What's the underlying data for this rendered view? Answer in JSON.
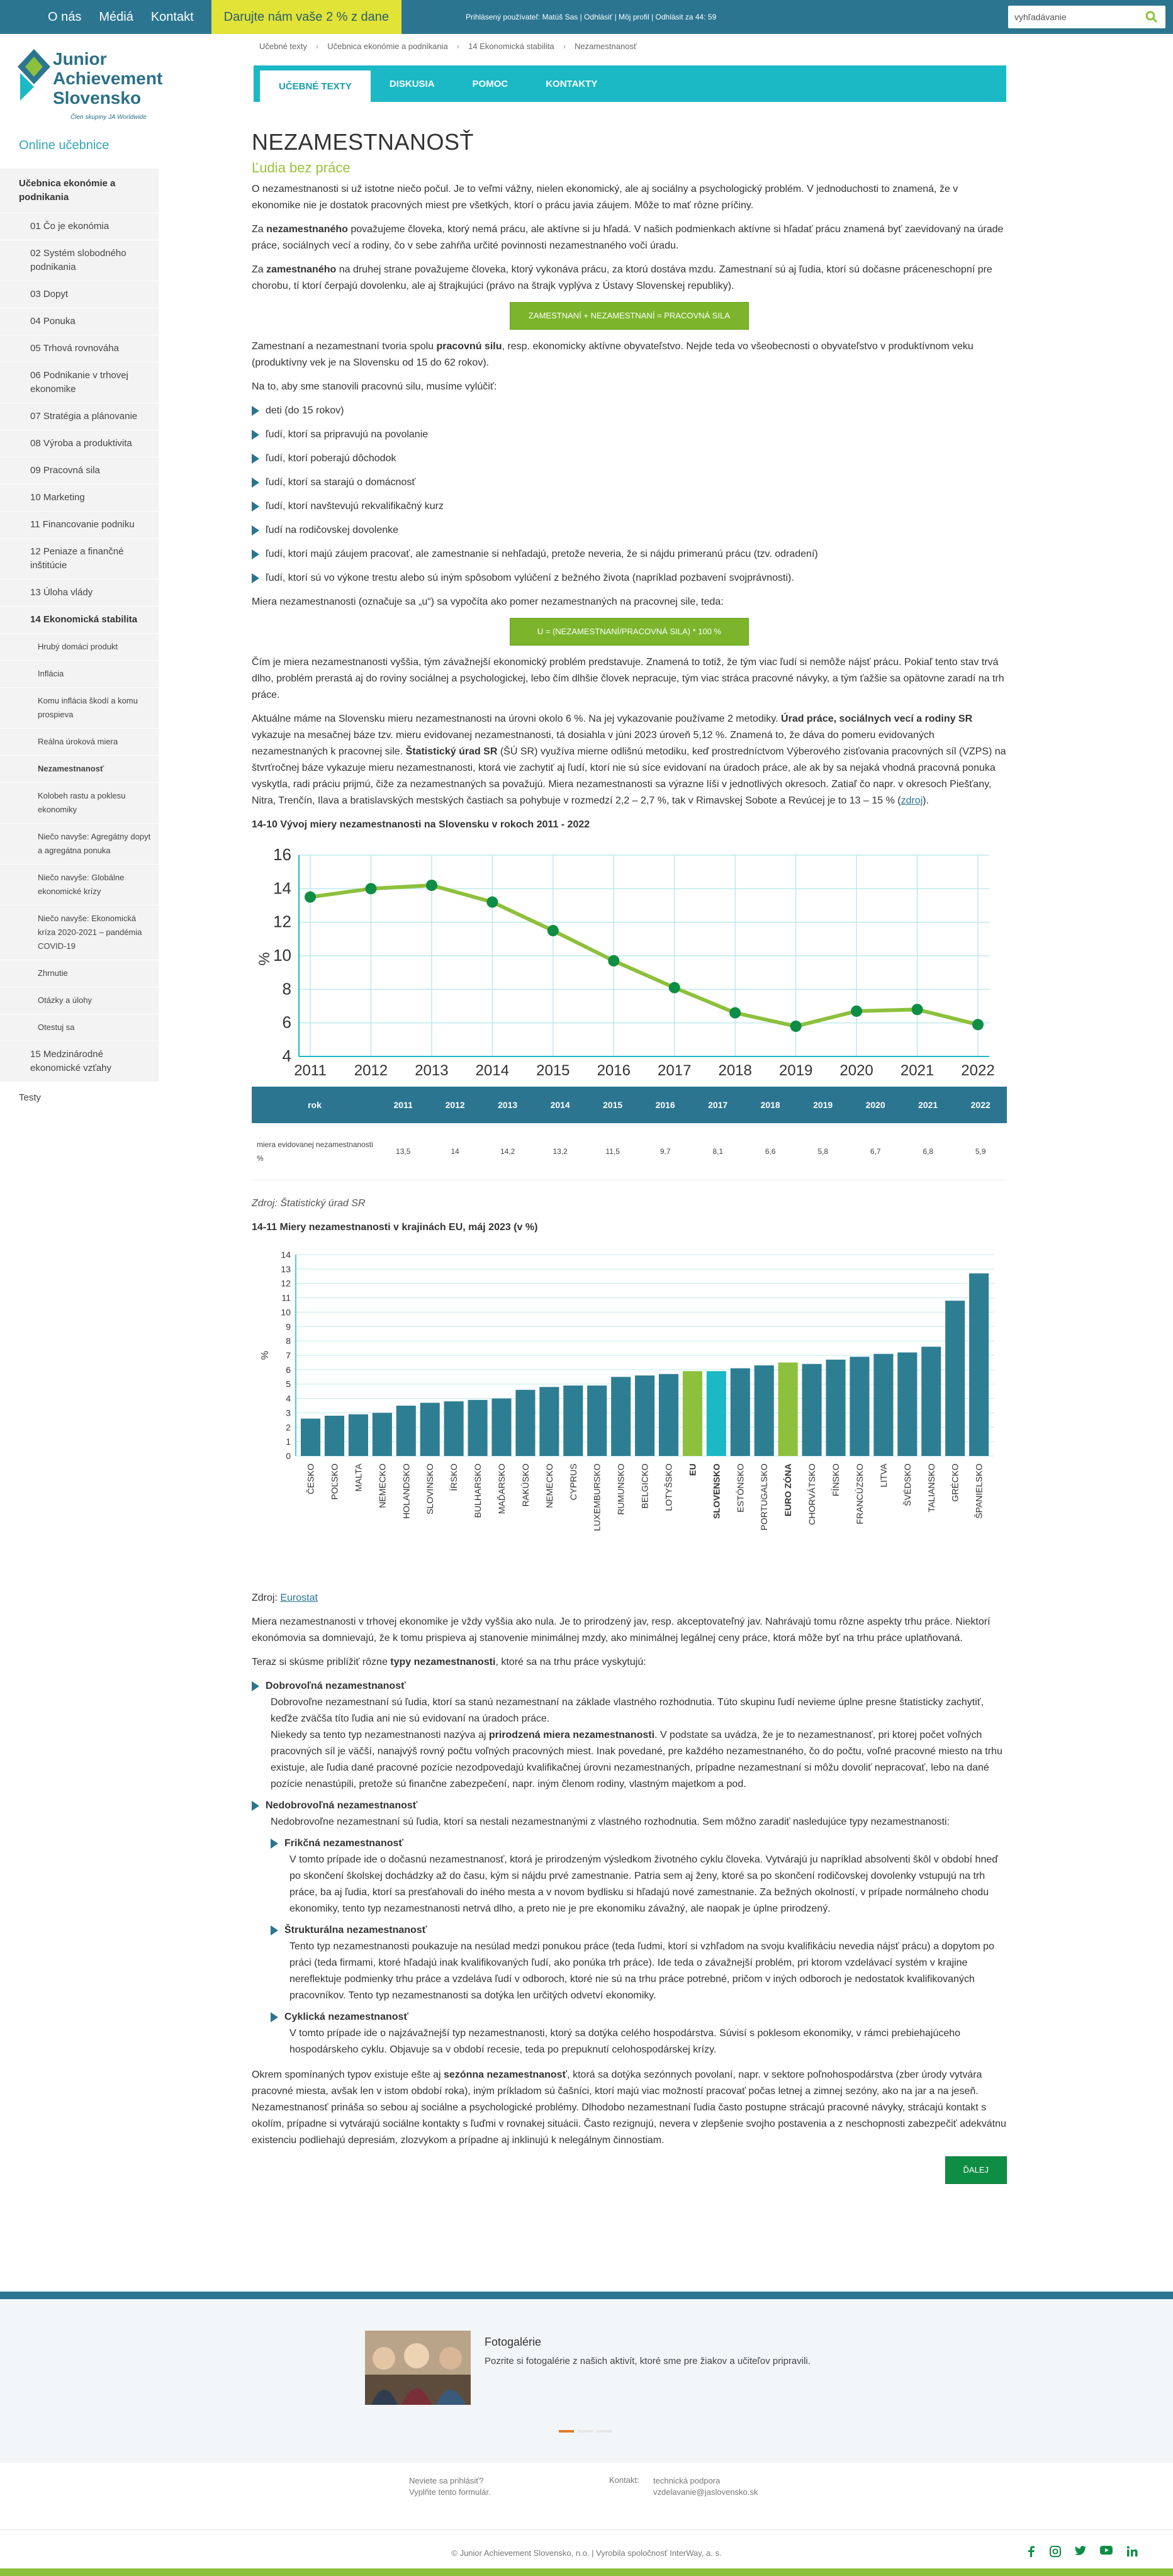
{
  "topbar": {
    "nav": [
      "O nás",
      "Médiá",
      "Kontakt"
    ],
    "donate": "Darujte nám vaše 2 % z dane",
    "user": "Prihlásený používateľ: Matúš Sas  |  Odhlásiť  |  Môj profil  |  Odhlásit za 44: 59",
    "search_placeholder": "vyhľadávanie"
  },
  "logo": {
    "line1": "Junior",
    "line2": "Achievement",
    "line3": "Slovensko",
    "tag": "Člen skupiny JA Worldwide"
  },
  "sidebar": {
    "title": "Online učebnice",
    "items": [
      {
        "label": "Učebnica ekonómie a podnikania",
        "lvl": "hdr"
      },
      {
        "label": "01 Čo je ekonómia",
        "lvl": "l1"
      },
      {
        "label": "02 Systém slobodného podnikania",
        "lvl": "l1"
      },
      {
        "label": "03 Dopyt",
        "lvl": "l1"
      },
      {
        "label": "04 Ponuka",
        "lvl": "l1"
      },
      {
        "label": "05 Trhová rovnováha",
        "lvl": "l1"
      },
      {
        "label": "06 Podnikanie v trhovej ekonomike",
        "lvl": "l1"
      },
      {
        "label": "07 Stratégia a plánovanie",
        "lvl": "l1"
      },
      {
        "label": "08 Výroba a produktivita",
        "lvl": "l1"
      },
      {
        "label": "09 Pracovná sila",
        "lvl": "l1"
      },
      {
        "label": "10 Marketing",
        "lvl": "l1"
      },
      {
        "label": "11 Financovanie podniku",
        "lvl": "l1"
      },
      {
        "label": "12 Peniaze a finančné inštitúcie",
        "lvl": "l1"
      },
      {
        "label": "13 Úloha vlády",
        "lvl": "l1"
      },
      {
        "label": "14 Ekonomická stabilita",
        "lvl": "l1b"
      },
      {
        "label": "Hrubý domáci produkt",
        "lvl": "l2"
      },
      {
        "label": "Inflácia",
        "lvl": "l2"
      },
      {
        "label": "Komu inflácia škodí a komu prospieva",
        "lvl": "l2"
      },
      {
        "label": "Reálna úroková miera",
        "lvl": "l2"
      },
      {
        "label": "Nezamestnanosť",
        "lvl": "l2c"
      },
      {
        "label": "Kolobeh rastu a poklesu ekonomiky",
        "lvl": "l2"
      },
      {
        "label": "Niečo navyše: Agregátny dopyt a agregátna ponuka",
        "lvl": "l2"
      },
      {
        "label": "Niečo navyše: Globálne ekonomické krízy",
        "lvl": "l2"
      },
      {
        "label": "Niečo navyše: Ekonomická kríza 2020-2021 – pandémia COVID-19",
        "lvl": "l2"
      },
      {
        "label": "Zhrnutie",
        "lvl": "l2"
      },
      {
        "label": "Otázky a úlohy",
        "lvl": "l2"
      },
      {
        "label": "Otestuj sa",
        "lvl": "l2"
      },
      {
        "label": "15 Medzinárodné ekonomické vzťahy",
        "lvl": "l1"
      },
      {
        "label": "Testy",
        "lvl": "l0"
      }
    ]
  },
  "breadcrumbs": [
    "Učebné texty",
    "Učebnica ekonómie a podnikania",
    "14 Ekonomická stabilita",
    "Nezamestnanosť"
  ],
  "tabs": [
    "UČEBNÉ TEXTY",
    "DISKUSIA",
    "POMOC",
    "KONTAKTY"
  ],
  "content": {
    "title": "NEZAMESTNANOSŤ",
    "subtitle": "Ľudia bez práce",
    "p1": "O nezamestnanosti si už istotne niečo počul. Je to veľmi vážny, nielen ekonomický, ale aj sociálny a psychologický problém. V jednoduchosti to znamená, že v ekonomike nie je dostatok pracovných miest pre všetkých, ktorí o prácu javia záujem. Môže to mať rôzne príčiny.",
    "p2a": "Za ",
    "p2b": "nezamestnaného",
    "p2c": " považujeme človeka, ktorý nemá prácu, ale aktívne si ju hľadá. V našich podmienkach aktívne si hľadať prácu znamená byť zaevidovaný na úrade práce, sociálnych vecí a rodiny, čo v sebe zahŕňa určité povinnosti nezamestnaného voči úradu.",
    "p3a": "Za ",
    "p3b": "zamestnaného",
    "p3c": " na druhej strane považujeme človeka, ktorý vykonáva prácu, za ktorú dostáva mzdu. Zamestnaní sú aj ľudia, ktorí sú dočasne práceneschopní pre chorobu, tí ktorí čerpajú dovolenku, ale aj štrajkujúci (právo na štrajk vyplýva z Ústavy Slovenskej republiky).",
    "formula1": "ZAMESTNANÍ + NEZAMESTNANÍ = PRACOVNÁ SILA",
    "p4a": "Zamestnaní a nezamestnaní tvoria spolu ",
    "p4b": "pracovnú silu",
    "p4c": ", resp. ekonomicky aktívne obyvateľstvo. Nejde teda vo všeobecnosti o obyvateľstvo v produktívnom veku (produktívny vek je na Slovensku od 15 do 62 rokov).",
    "p5": "Na to, aby sme stanovili pracovnú silu, musíme vylúčiť:",
    "exclusions": [
      "deti (do 15 rokov)",
      "ľudí, ktorí sa pripravujú na povolanie",
      "ľudí, ktorí poberajú dôchodok",
      "ľudí, ktorí sa starajú o domácnosť",
      "ľudí, ktorí navštevujú rekvalifikačný kurz",
      "ľudí na rodičovskej dovolenke",
      "ľudí, ktorí majú záujem pracovať, ale zamestnanie si nehľadajú, pretože neveria, že si nájdu primeranú prácu (tzv. odradení)",
      "ľudí, ktorí sú vo výkone trestu alebo sú iným spôsobom vylúčení z bežného života (napríklad pozbavení svojprávnosti)."
    ],
    "p6": "Miera nezamestnanosti (označuje sa „u“) sa vypočíta ako pomer nezamestnaných na pracovnej sile, teda:",
    "formula2": "U = (NEZAMESTNANÍ/PRACOVNÁ SILA) * 100 %",
    "p7": "Čím je miera nezamestnanosti vyššia, tým závažnejší ekonomický problém predstavuje. Znamená to totiž, že tým viac ľudí si nemôže nájsť prácu. Pokiaľ tento stav trvá dlho, problém prerastá aj do roviny sociálnej a psychologickej, lebo čím dlhšie človek nepracuje, tým viac stráca pracovné návyky, a tým ťažšie sa opätovne zaradí na trh práce.",
    "p8a": "Aktuálne máme na Slovensku mieru nezamestnanosti na úrovni okolo 6 %. Na jej vykazovanie používame 2 metodiky. ",
    "p8b": "Úrad práce, sociálnych vecí a rodiny SR",
    "p8c": " vykazuje na mesačnej báze tzv.  mieru evidovanej nezamestnanosti, tá dosiahla v júni 2023 úroveň 5,12 %. Znamená to, že dáva do pomeru evidovaných nezamestnaných k pracovnej sile. ",
    "p8d": "Štatistický úrad SR",
    "p8e": " (ŠÚ SR) využíva mierne odlišnú metodiku, keď prostredníctvom Výberového zisťovania pracovných síl (VZPS) na štvrťročnej báze vykazuje mieru nezamestnanosti, ktorá vie zachytiť aj ľudí, ktorí nie sú síce evidovaní na úradoch práce, ale ak by sa nejaká vhodná pracovná ponuka vyskytla, radi práciu prijmú, čiže za nezamestnaných sa považujú. Miera nezamestnanosti sa výrazne líši v jednotlivých okresoch. Zatiaľ čo napr. v okresoch Piešťany, Nitra, Trenčín, Ilava a bratislavských mestských častiach sa pohybuje v rozmedzí 2,2 – 2,7 %, tak v Rimavskej Sobote a Revúcej je to 13 – 15 % (",
    "p8link": "zdroj",
    "p8f": ").",
    "chart1_title": "14-10 Vývoj miery nezamestnanosti na Slovensku v rokoch 2011 - 2022",
    "table_head": "rok",
    "table_row_label": "miera evidovanej nezamestnanosti %",
    "src1": "Zdroj: Štatistický úrad SR",
    "chart2_title": "14-11 Miery nezamestnanosti v krajinách EU, máj 2023 (v %)",
    "src2a": "Zdroj: ",
    "src2link": "Eurostat",
    "p9": "Miera nezamestnanosti v trhovej ekonomike je vždy vyššia ako nula. Je to prirodzený jav, resp. akceptovateľný jav. Nahrávajú tomu rôzne aspekty trhu práce. Niektorí ekonómovia sa domnievajú, že k tomu prispieva aj stanovenie minimálnej mzdy, ako minimálnej legálnej ceny práce, ktorá môže byť na trhu práce uplatňovaná.",
    "p10a": "Teraz si skúsme priblížiť rôzne ",
    "p10b": "typy nezamestnanosti",
    "p10c": ", ktoré sa na trhu práce vyskytujú:",
    "t1_head": "Dobrovoľná nezamestnanosť",
    "t1_p1": "Dobrovoľne nezamestnaní sú ľudia, ktorí sa stanú nezamestnaní na základe vlastného rozhodnutia. Túto skupinu ľudí nevieme úplne presne štatisticky zachytiť, keďže zväčša títo ľudia ani nie sú evidovaní na úradoch práce.",
    "t1_p2a": "Niekedy sa tento typ nezamestnanosti nazýva aj ",
    "t1_p2b": "prirodzená miera nezamestnanosti",
    "t1_p2c": ". V podstate sa uvádza, že je to nezamestnanosť, pri ktorej počet voľných pracovných síl je väčší, nanajvýš rovný počtu voľných pracovných miest. Inak povedané, pre každého nezamestnaného, čo do počtu, voľné pracovné miesto na trhu existuje, ale ľudia dané pracovné pozície nezodpovedajú kvalifikačnej úrovni nezamestnaných, prípadne nezamestnaní si môžu dovoliť nepracovať, lebo na dané pozície nenastúpili, pretože sú finančne zabezpečení, napr. iným členom rodiny, vlastným majetkom a pod.",
    "t2_head": "Nedobrovoľná nezamestnanosť",
    "t2_p": "Nedobrovoľne nezamestnaní sú ľudia, ktorí sa nestali nezamestnanými z vlastného rozhodnutia. Sem môžno zaradiť nasledujúce typy nezamestnanosti:",
    "s1_head": "Frikčná nezamestnanosť",
    "s1_p": "V tomto prípade ide o dočasnú nezamestnanosť, ktorá je prirodzeným výsledkom životného cyklu človeka. Vytvárajú ju napríklad absolventi škôl v období hneď po skončení školskej dochádzky až do času, kým si nájdu prvé zamestnanie. Patria sem aj ženy, ktoré sa po skončení rodičovskej dovolenky vstupujú na trh práce, ba aj ľudia, ktorí sa presťahovali do iného mesta a v novom bydlisku si hľadajú nové zamestnanie. Za bežných okolností, v prípade normálneho chodu ekonomiky, tento typ nezamestnanosti netrvá dlho, a preto nie je pre ekonomiku závažný, ale naopak je úplne prirodzený.",
    "s2_head": "Štrukturálna nezamestnanosť",
    "s2_p": "Tento typ nezamestnanosti poukazuje na nesúlad medzi ponukou práce (teda ľudmi, ktorí si vzhľadom na svoju kvalifikáciu nevedia nájsť prácu) a dopytom po práci (teda firmami, ktoré hľadajú inak kvalifikovaných ľudí, ako ponúka trh práce). Ide teda o závažnejší problém, pri ktorom vzdelávací systém v krajine nereflektuje podmienky trhu práce a vzdeláva ľudí v odboroch, ktoré nie sú na trhu práce potrebné, pričom v iných odboroch je nedostatok kvalifikovaných pracovníkov. Tento typ nezamestnanosti sa dotýka len určitých odvetví ekonomiky.",
    "s3_head": "Cyklická nezamestnanosť",
    "s3_p": "V tomto prípade ide o najzávažnejší typ nezamestnanosti, ktorý sa dotýka celého hospodárstva. Súvisí s poklesom ekonomiky, v rámci prebiehajúceho hospodárskeho cyklu. Objavuje sa v období recesie, teda po prepuknutí celohospodárskej krízy.",
    "p11a": "Okrem spomínaných typov existuje ešte aj ",
    "p11b": "sezónna nezamestnanosť",
    "p11c": ", ktorá sa dotýka sezónnych povolaní, napr. v sektore poľnohospodárstva (zber úrody vytvára pracovné miesta, avšak len v istom období roka), iným príkladom sú čašníci, ktorí majú viac možností pracovať počas letnej a zimnej sezóny, ako na jar a na jeseň.",
    "p12": "Nezamestnanosť prináša so sebou aj sociálne a psychologické problémy. Dlhodobo nezamestnaní ľudia často postupne strácajú pracovné návyky, stráca­jú kontakt s okolím, prípadne si vytvárajú sociálne kontakty s ľuďmi v rovnakej situácii. Často rezignujú, nevera v zlepšenie svojho postavenia a z neschopnosti zabezpečiť adekvátnu existenciu podliehajú depresiám, zlozvykom a prípadne aj inklinujú k nelegálnym činnostiam.",
    "next": "ĎALEJ"
  },
  "chart_data": [
    {
      "type": "line",
      "title": "14-10 Vývoj miery nezamestnanosti na Slovensku v rokoch 2011 - 2022",
      "x": [
        "2011",
        "2012",
        "2013",
        "2014",
        "2015",
        "2016",
        "2017",
        "2018",
        "2019",
        "2020",
        "2021",
        "2022"
      ],
      "values": [
        13.5,
        14,
        14.2,
        13.2,
        11.5,
        9.7,
        8.1,
        6.6,
        5.8,
        6.7,
        6.8,
        5.9
      ],
      "ylabel": "%",
      "ylim": [
        4,
        16
      ],
      "yticks": [
        4,
        6,
        8,
        10,
        12,
        14,
        16
      ],
      "grid": true,
      "line_color": "#8dc03c",
      "marker_color": "#0e8d44",
      "table_values": [
        "13,5",
        "14",
        "14,2",
        "13,2",
        "11,5",
        "9,7",
        "8,1",
        "6,6",
        "5,8",
        "6,7",
        "6,8",
        "5,9"
      ]
    },
    {
      "type": "bar",
      "title": "14-11 Miery nezamestnanosti v krajinách EU, máj 2023 (v %)",
      "categories": [
        "ČESKO",
        "POĽSKO",
        "MALTA",
        "NEMECKO",
        "HOLANDSKO",
        "SLOVINSKO",
        "ÍRSKO",
        "BULHARSKO",
        "MAĎARSKO",
        "RAKÚSKO",
        "NEMECKO",
        "CYPRUS",
        "LUXEMBURSKO",
        "RUMUNSKO",
        "BELGICKO",
        "LOTYŠSKO",
        "EU",
        "SLOVENSKO",
        "ESTÓNSKO",
        "PORTUGALSKO",
        "EURO ZÓNA",
        "CHORVÁTSKO",
        "FÍNSKO",
        "FRANCÚZSKO",
        "LITVA",
        "ŠVÉDSKO",
        "TALIANSKO",
        "GRÉCKO",
        "ŠPANIELSKO"
      ],
      "values": [
        2.6,
        2.8,
        2.9,
        3.0,
        3.5,
        3.7,
        3.8,
        3.9,
        4.0,
        4.6,
        4.8,
        4.9,
        4.9,
        5.5,
        5.6,
        5.7,
        5.9,
        5.9,
        6.1,
        6.3,
        6.5,
        6.4,
        6.7,
        6.9,
        7.1,
        7.2,
        7.6,
        10.8,
        12.7
      ],
      "bold_categories": [
        "EU",
        "SLOVENSKO",
        "EURO ZÓNA"
      ],
      "highlight": {
        "EU": "#8dc03c",
        "SLOVENSKO": "#1ab9c5",
        "EURO ZÓNA": "#8dc03c"
      },
      "bar_color": "#2e7e93",
      "ylabel": "%",
      "ylim": [
        0,
        14
      ],
      "yticks": [
        0,
        1,
        2,
        3,
        4,
        5,
        6,
        7,
        8,
        9,
        10,
        11,
        12,
        13,
        14
      ],
      "grid": true
    }
  ],
  "footer": {
    "gallery_title": "Fotogalérie",
    "gallery_text": "Pozrite si fotogalérie z našich aktivít, ktoré sme pre žiakov a učiteľov pripravili.",
    "login_q": "Neviete sa prihlásiť?",
    "login_form": "Vyplňte tento formulár.",
    "contact_label": "Kontakt:",
    "contact_name": "technická podpora",
    "contact_email": "vzdelavanie@jaslovensko.sk",
    "copyright": "© Junior Achievement Slovensko, n.o.  |  Vyrobila spoločnosť InterWay, a. s.",
    "social": [
      "facebook-icon",
      "instagram-icon",
      "twitter-icon",
      "youtube-icon",
      "linkedin-icon"
    ]
  },
  "colors": {
    "teal": "#1ab9c5",
    "navy": "#2b7591",
    "green": "#7cb52b",
    "yellow": "#e1e336",
    "dark_green": "#0e8d44"
  }
}
